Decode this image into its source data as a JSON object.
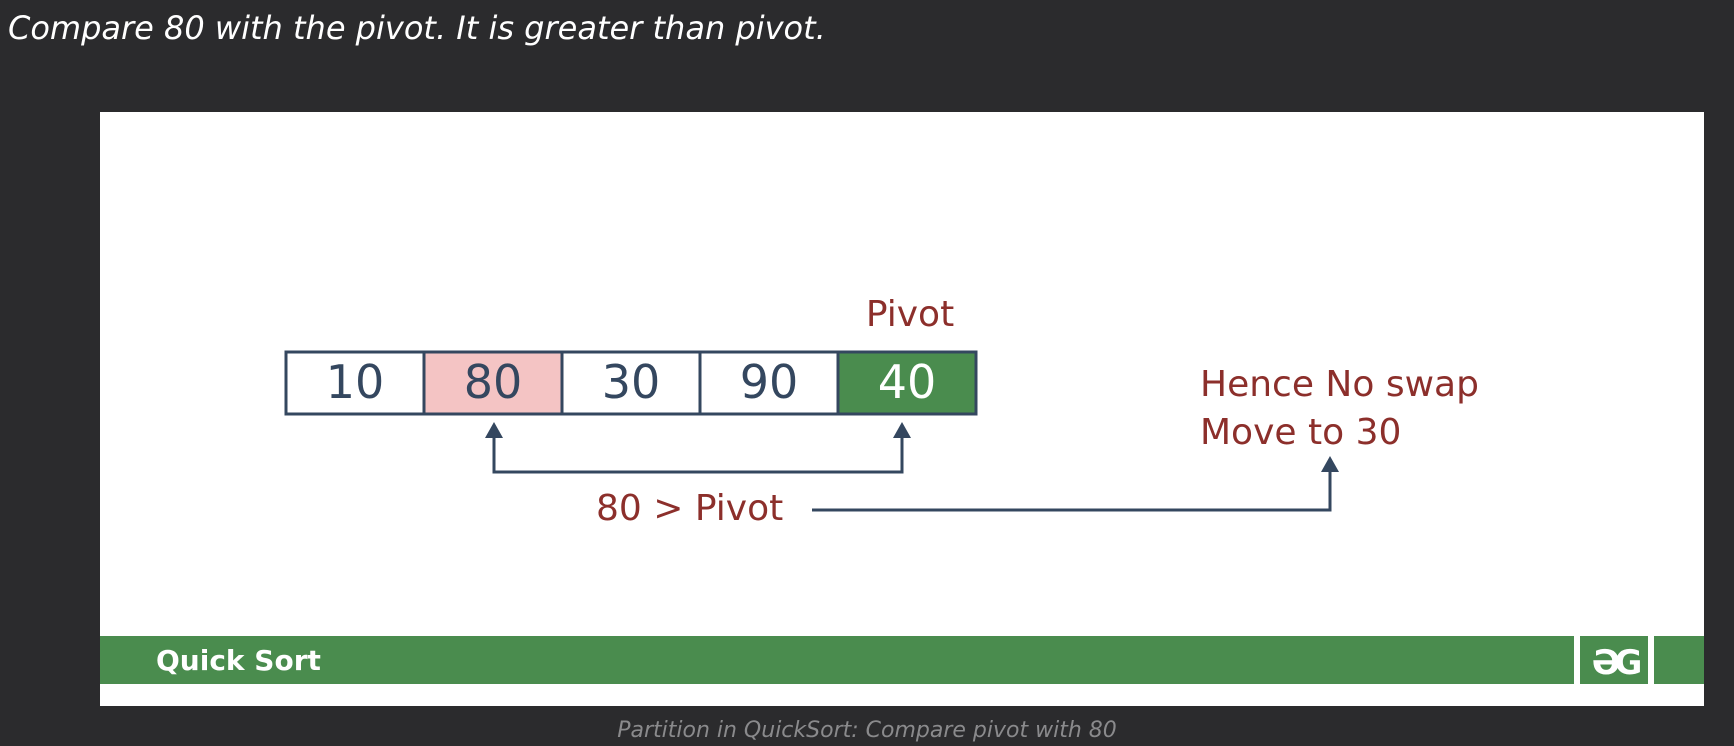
{
  "page": {
    "heading": "Compare 80 with the pivot. It is greater than pivot.",
    "caption": "Partition in QuickSort: Compare pivot with 80"
  },
  "diagram": {
    "array": [
      {
        "value": "10",
        "state": "normal"
      },
      {
        "value": "80",
        "state": "current"
      },
      {
        "value": "30",
        "state": "normal"
      },
      {
        "value": "90",
        "state": "normal"
      },
      {
        "value": "40",
        "state": "pivot"
      }
    ],
    "pivot_label": "Pivot",
    "comparison_label": "80 > Pivot",
    "result_line1": "Hence No swap",
    "result_line2": "Move to 30",
    "banner_title": "Quick Sort",
    "logo_text": "GfG",
    "colors": {
      "cell_border": "#34475f",
      "cell_text": "#34475f",
      "current_fill": "#f4c4c4",
      "pivot_fill": "#4a8c4e",
      "pivot_text": "#ffffff",
      "label_red": "#8c2f2b",
      "arrow": "#34475f",
      "banner_green": "#4a8c4e",
      "banner_text": "#ffffff"
    }
  }
}
